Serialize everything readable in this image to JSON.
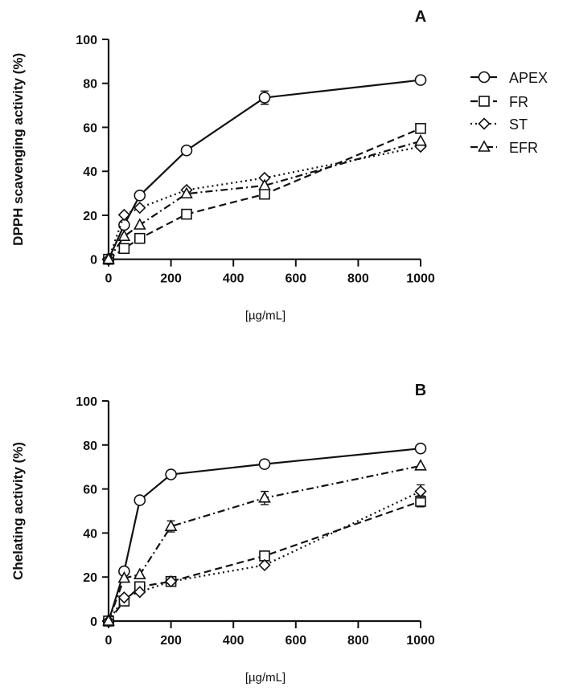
{
  "legend": [
    {
      "name": "APEX",
      "marker": "circle",
      "line": "solid"
    },
    {
      "name": "FR",
      "marker": "square",
      "line": "dashed"
    },
    {
      "name": "ST",
      "marker": "diamond",
      "line": "dotted"
    },
    {
      "name": "EFR",
      "marker": "triangle",
      "line": "dash-dot"
    }
  ],
  "chart_data": [
    {
      "type": "line",
      "panel_label": "A",
      "xlabel": "[µg/mL]",
      "ylabel": "DPPH scavenging activity (%)",
      "xlim": [
        0,
        1000
      ],
      "ylim": [
        0,
        100
      ],
      "xticks": [
        0,
        200,
        400,
        600,
        800,
        1000
      ],
      "yticks": [
        0,
        20,
        40,
        60,
        80,
        100
      ],
      "legend_position": "right",
      "series": [
        {
          "name": "APEX",
          "x": [
            0,
            50,
            100,
            250,
            500,
            1000
          ],
          "y": [
            0,
            15.6,
            29,
            49.5,
            73.5,
            81.5
          ],
          "err": [
            0,
            0,
            0,
            0,
            3,
            0
          ]
        },
        {
          "name": "FR",
          "x": [
            0,
            50,
            100,
            250,
            500,
            1000
          ],
          "y": [
            0,
            4.9,
            9.5,
            20.5,
            29.6,
            59.5
          ],
          "err": [
            0,
            0,
            0,
            0,
            0,
            0
          ]
        },
        {
          "name": "ST",
          "x": [
            0,
            50,
            100,
            250,
            500,
            1000
          ],
          "y": [
            0,
            20.2,
            23.4,
            31.5,
            37,
            51.2
          ],
          "err": [
            0,
            0,
            0,
            0,
            0,
            0
          ]
        },
        {
          "name": "EFR",
          "x": [
            0,
            50,
            100,
            250,
            500,
            1000
          ],
          "y": [
            0,
            10.4,
            15.6,
            29.8,
            33.5,
            53.7
          ],
          "err": [
            0,
            0,
            0,
            0,
            0,
            0
          ]
        }
      ]
    },
    {
      "type": "line",
      "panel_label": "B",
      "xlabel": "[µg/mL]",
      "ylabel": "Chelating activity (%)",
      "xlim": [
        0,
        1000
      ],
      "ylim": [
        0,
        100
      ],
      "xticks": [
        0,
        200,
        400,
        600,
        800,
        1000
      ],
      "yticks": [
        0,
        20,
        40,
        60,
        80,
        100
      ],
      "series": [
        {
          "name": "APEX",
          "x": [
            0,
            50,
            100,
            200,
            500,
            1000
          ],
          "y": [
            0,
            22.6,
            54.9,
            66.6,
            71.3,
            78.4
          ],
          "err": [
            0,
            0,
            0,
            0,
            0,
            0
          ]
        },
        {
          "name": "FR",
          "x": [
            0,
            50,
            100,
            200,
            500,
            1000
          ],
          "y": [
            0,
            9.1,
            15.6,
            18,
            29.6,
            54.4
          ],
          "err": [
            0,
            0,
            0,
            0,
            0,
            2.5
          ]
        },
        {
          "name": "ST",
          "x": [
            0,
            50,
            100,
            200,
            500,
            1000
          ],
          "y": [
            0,
            10.7,
            13.2,
            18,
            25.4,
            58.9
          ],
          "err": [
            0,
            0,
            0,
            0,
            0,
            3
          ]
        },
        {
          "name": "EFR",
          "x": [
            0,
            50,
            100,
            200,
            500,
            1000
          ],
          "y": [
            0,
            19.5,
            21.1,
            43,
            55.9,
            70.5
          ],
          "err": [
            0,
            0,
            0,
            2.5,
            3,
            0
          ]
        }
      ]
    }
  ]
}
